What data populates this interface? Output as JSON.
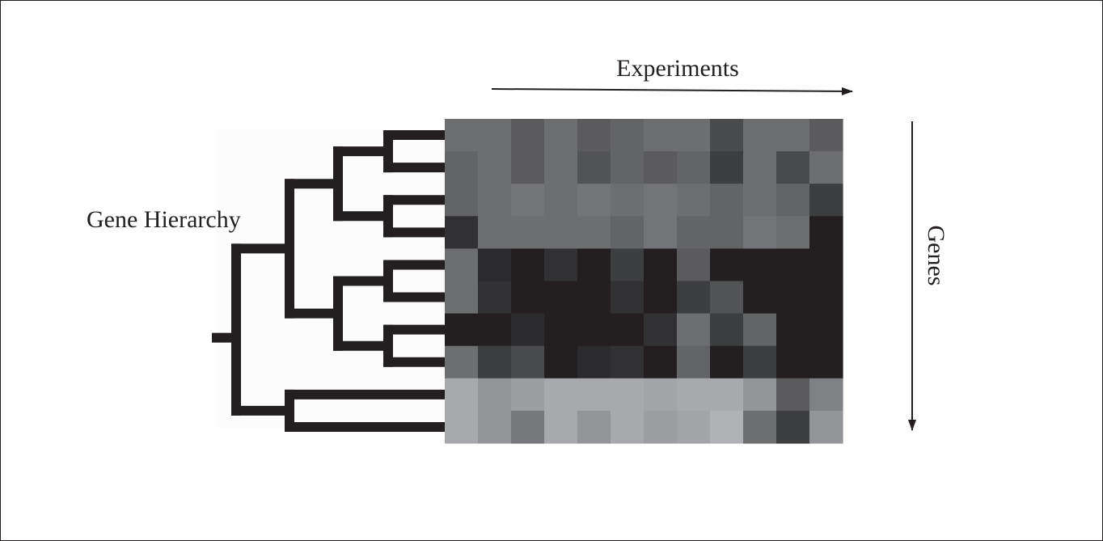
{
  "labels": {
    "x_axis": "Experiments",
    "y_axis": "Genes",
    "dendrogram": "Gene Hierarchy"
  },
  "colors": {
    "line": "#231f20",
    "background": "#ffffff"
  },
  "chart_data": {
    "type": "heatmap",
    "xlabel": "Experiments",
    "ylabel": "Genes",
    "rows": 10,
    "cols": 12,
    "values": [
      [
        "#6d6e70",
        "#6d6e70",
        "#5b5b5e",
        "#6d6e70",
        "#5b5b5e",
        "#636466",
        "#6d6e70",
        "#6d6e70",
        "#4a4b4d",
        "#6d6e70",
        "#6d6e70",
        "#5b5b5e"
      ],
      [
        "#636466",
        "#6d6e70",
        "#5b5b5e",
        "#6d6e70",
        "#525355",
        "#636466",
        "#5b5b5e",
        "#636466",
        "#3d3e40",
        "#6d6e70",
        "#4a4b4d",
        "#6d6e70"
      ],
      [
        "#636466",
        "#6d6e70",
        "#737477",
        "#6d6e70",
        "#737477",
        "#6d6e70",
        "#737477",
        "#6d6e70",
        "#636466",
        "#6d6e70",
        "#636466",
        "#3d3e40"
      ],
      [
        "#313133",
        "#6d6e70",
        "#6d6e70",
        "#6d6e70",
        "#6d6e70",
        "#636466",
        "#737477",
        "#636466",
        "#636466",
        "#737477",
        "#6d6e70",
        "#231f20"
      ],
      [
        "#6d6e70",
        "#2b2a2c",
        "#231f20",
        "#313133",
        "#231f20",
        "#3d3e40",
        "#231f20",
        "#5b5b5e",
        "#231f20",
        "#231f20",
        "#231f20",
        "#231f20"
      ],
      [
        "#6d6e70",
        "#313133",
        "#231f20",
        "#231f20",
        "#231f20",
        "#313133",
        "#231f20",
        "#3d3e40",
        "#525355",
        "#231f20",
        "#231f20",
        "#231f20"
      ],
      [
        "#231f20",
        "#231f20",
        "#2b2a2c",
        "#231f20",
        "#231f20",
        "#231f20",
        "#313133",
        "#6d6e70",
        "#3d3e40",
        "#636466",
        "#231f20",
        "#231f20"
      ],
      [
        "#6d6e70",
        "#3d3e40",
        "#4a4b4d",
        "#231f20",
        "#2b2a2c",
        "#313133",
        "#231f20",
        "#636466",
        "#231f20",
        "#3d3e40",
        "#231f20",
        "#231f20"
      ],
      [
        "#a8a9ac",
        "#939598",
        "#9d9ea1",
        "#a8a9ac",
        "#a8a9ac",
        "#a8a9ac",
        "#a3a4a7",
        "#a8a9ac",
        "#a8a9ac",
        "#939598",
        "#5b5b5e",
        "#808184"
      ],
      [
        "#a8a9ac",
        "#939598",
        "#77787b",
        "#a8a9ac",
        "#939598",
        "#a8a9ac",
        "#9d9ea1",
        "#a3a4a7",
        "#b0b1b4",
        "#6d6e70",
        "#3d3e40",
        "#939598"
      ]
    ]
  },
  "dendrogram": {
    "tree": [
      [
        [
          [
            0,
            1
          ],
          [
            2,
            3
          ]
        ],
        [
          [
            4,
            5
          ],
          [
            6,
            7
          ]
        ]
      ],
      [
        8,
        9
      ]
    ]
  }
}
